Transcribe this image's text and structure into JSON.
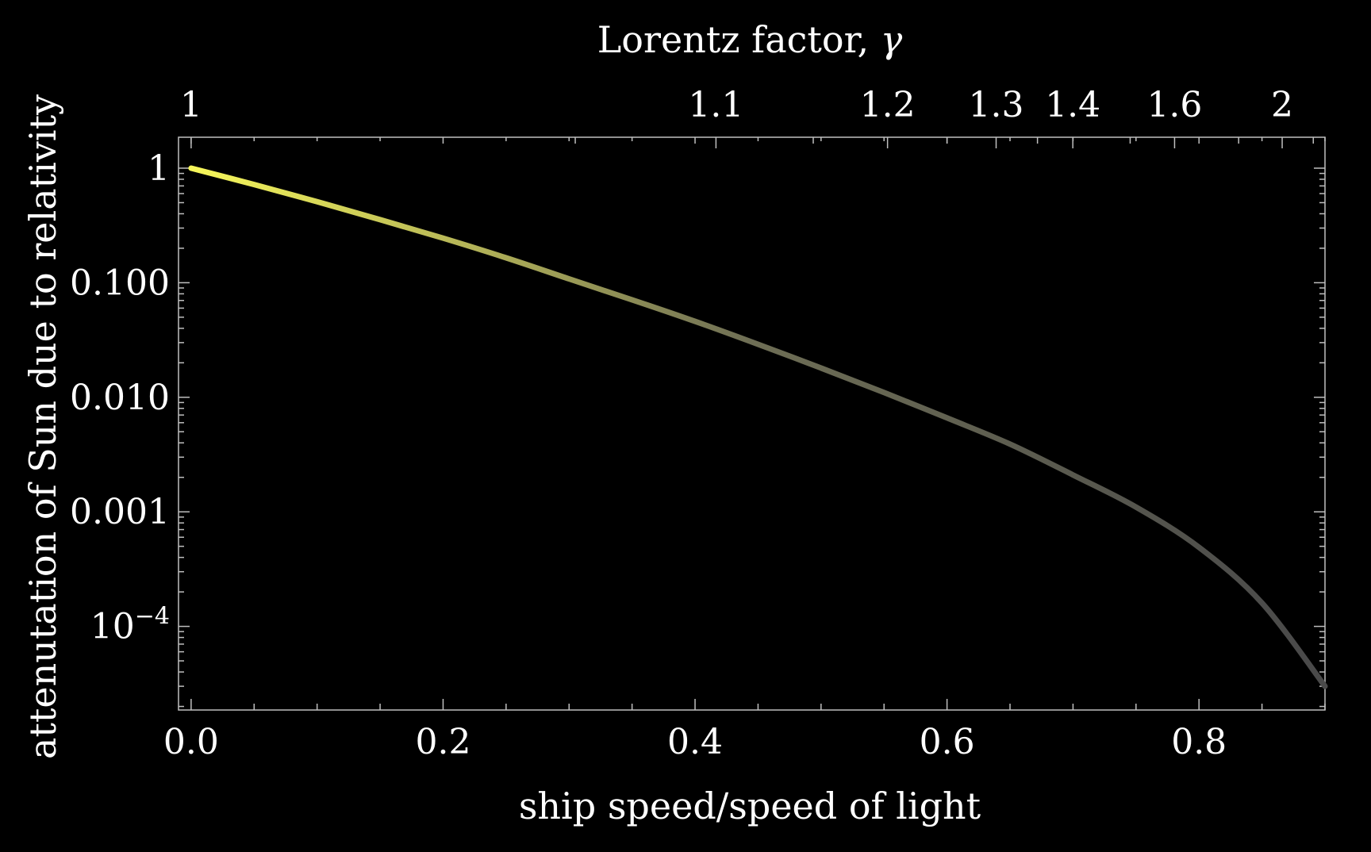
{
  "chart_data": {
    "type": "line",
    "xlabel": "ship speed/speed of light",
    "ylabel": "attenutation of Sun due to relativity",
    "top_axis_label_text": "Lorentz factor, ",
    "top_axis_label_symbol": "γ",
    "xlim": [
      -0.01,
      0.9
    ],
    "ylim_log10": [
      -4.73,
      0.27
    ],
    "y_scale": "log",
    "grid": false,
    "legend": "none",
    "x_ticks": [
      {
        "value": 0.0,
        "label": "0.0"
      },
      {
        "value": 0.2,
        "label": "0.2"
      },
      {
        "value": 0.4,
        "label": "0.4"
      },
      {
        "value": 0.6,
        "label": "0.6"
      },
      {
        "value": 0.8,
        "label": "0.8"
      }
    ],
    "y_ticks": [
      {
        "value": 1,
        "label": "1"
      },
      {
        "value": 0.1,
        "label": "0.100"
      },
      {
        "value": 0.01,
        "label": "0.010"
      },
      {
        "value": 0.001,
        "label": "0.001"
      },
      {
        "value": 0.0001,
        "base": "10",
        "exponent": "−4"
      }
    ],
    "top_ticks": [
      {
        "gamma": 1,
        "label": "1"
      },
      {
        "gamma": 1.1,
        "label": "1.1"
      },
      {
        "gamma": 1.2,
        "label": "1.2"
      },
      {
        "gamma": 1.3,
        "label": "1.3"
      },
      {
        "gamma": 1.4,
        "label": "1.4"
      },
      {
        "gamma": 1.6,
        "label": "1.6"
      },
      {
        "gamma": 2,
        "label": "2"
      }
    ],
    "series": [
      {
        "x": [
          0.0,
          0.05,
          0.1,
          0.15,
          0.2,
          0.25,
          0.3,
          0.35,
          0.4,
          0.45,
          0.5,
          0.55,
          0.6,
          0.65,
          0.7,
          0.75,
          0.8,
          0.85,
          0.9
        ],
        "y": [
          1.0,
          0.72,
          0.51,
          0.355,
          0.245,
          0.165,
          0.108,
          0.071,
          0.046,
          0.029,
          0.018,
          0.011,
          0.0066,
          0.0039,
          0.0021,
          0.0011,
          0.00049,
          0.00016,
          3e-05
        ],
        "color_start": "#f5f55a",
        "color_end": "#4a4a4a"
      }
    ],
    "colors": {
      "background": "#000000",
      "frame": "#bfbfbf",
      "text": "#ffffff"
    }
  }
}
